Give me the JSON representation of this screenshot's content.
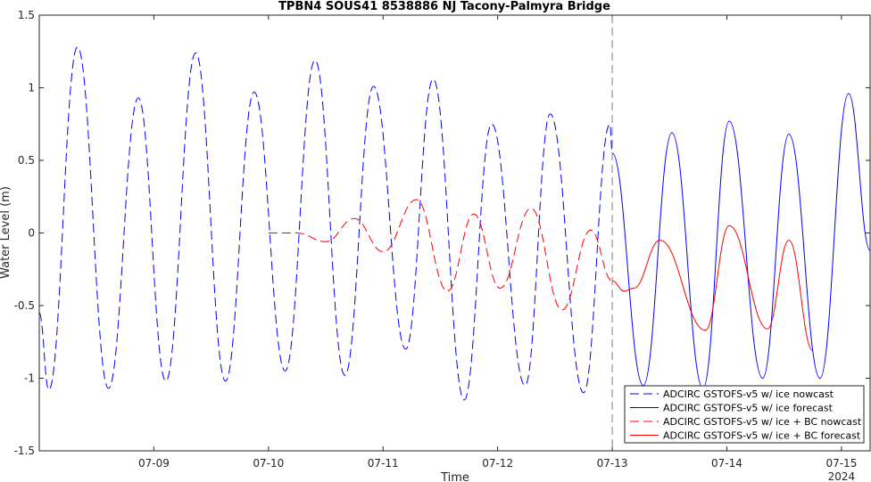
{
  "chart_data": {
    "type": "line",
    "title": "TPBN4 SOUS41 8538886 NJ Tacony-Palmyra Bridge",
    "xlabel": "Time",
    "ylabel": "Water Level (m)",
    "ylim": [
      -1.5,
      1.5
    ],
    "xlim": [
      "2024-07-08 00:00",
      "2024-07-15 06:00"
    ],
    "yticks": [
      1.5,
      1,
      0.5,
      0,
      -0.5,
      -1,
      -1.5
    ],
    "ytick_labels": [
      "1.5",
      "1",
      "0.5",
      "0",
      "-0.5",
      "-1",
      "-1.5"
    ],
    "xticks": [
      "2024-07-09",
      "2024-07-10",
      "2024-07-11",
      "2024-07-12",
      "2024-07-13",
      "2024-07-14",
      "2024-07-15"
    ],
    "xtick_labels": [
      "07-09",
      "07-10",
      "07-11",
      "07-12",
      "07-13",
      "07-14",
      "07-15"
    ],
    "x_year_label": "2024",
    "forecast_start": "2024-07-13 00:00",
    "legend_location": "bottom-right",
    "series": [
      {
        "name": "ADCIRC GSTOFS-v5 w/ ice nowcast",
        "color": "#0000ff",
        "style": "dashed",
        "points": [
          [
            "2024-07-08 00:00",
            -0.55
          ],
          [
            "2024-07-08 02:00",
            -1.08
          ],
          [
            "2024-07-08 08:00",
            1.28
          ],
          [
            "2024-07-08 14:30",
            -1.07
          ],
          [
            "2024-07-08 20:45",
            0.93
          ],
          [
            "2024-07-09 02:30",
            -1.02
          ],
          [
            "2024-07-09 08:45",
            1.24
          ],
          [
            "2024-07-09 15:00",
            -1.02
          ],
          [
            "2024-07-09 21:00",
            0.97
          ],
          [
            "2024-07-10 03:30",
            -0.95
          ],
          [
            "2024-07-10 09:45",
            1.19
          ],
          [
            "2024-07-10 16:00",
            -0.98
          ],
          [
            "2024-07-10 22:00",
            1.01
          ],
          [
            "2024-07-11 04:45",
            -0.8
          ],
          [
            "2024-07-11 10:30",
            1.06
          ],
          [
            "2024-07-11 17:00",
            -1.15
          ],
          [
            "2024-07-11 22:45",
            0.75
          ],
          [
            "2024-07-12 05:45",
            -1.05
          ],
          [
            "2024-07-12 11:00",
            0.82
          ],
          [
            "2024-07-12 18:00",
            -1.1
          ],
          [
            "2024-07-12 23:30",
            0.75
          ],
          [
            "2024-07-13 00:00",
            0.55
          ]
        ]
      },
      {
        "name": "ADCIRC GSTOFS-v5 w/ ice forecast",
        "color": "#0000ff",
        "style": "solid",
        "points": [
          [
            "2024-07-13 00:00",
            0.55
          ],
          [
            "2024-07-13 06:30",
            -1.05
          ],
          [
            "2024-07-13 12:30",
            0.69
          ],
          [
            "2024-07-13 19:00",
            -1.07
          ],
          [
            "2024-07-14 00:30",
            0.77
          ],
          [
            "2024-07-14 07:30",
            -1.0
          ],
          [
            "2024-07-14 13:00",
            0.68
          ],
          [
            "2024-07-14 19:30",
            -1.0
          ],
          [
            "2024-07-15 01:30",
            0.96
          ],
          [
            "2024-07-15 06:00",
            -0.12
          ]
        ]
      },
      {
        "name": "ADCIRC GSTOFS-v5 w/ ice + BC nowcast",
        "color": "#ff0000",
        "style": "dashed",
        "points": [
          [
            "2024-07-10 00:00",
            0.0
          ],
          [
            "2024-07-10 06:00",
            0.0
          ],
          [
            "2024-07-10 12:00",
            -0.06
          ],
          [
            "2024-07-10 18:00",
            0.1
          ],
          [
            "2024-07-11 00:00",
            -0.13
          ],
          [
            "2024-07-11 07:00",
            0.23
          ],
          [
            "2024-07-11 13:30",
            -0.4
          ],
          [
            "2024-07-11 19:00",
            0.13
          ],
          [
            "2024-07-12 00:30",
            -0.38
          ],
          [
            "2024-07-12 07:00",
            0.17
          ],
          [
            "2024-07-12 13:30",
            -0.53
          ],
          [
            "2024-07-12 19:30",
            0.02
          ],
          [
            "2024-07-13 00:00",
            -0.33
          ]
        ]
      },
      {
        "name": "ADCIRC GSTOFS-v5 w/ ice + BC forecast",
        "color": "#ff0000",
        "style": "solid",
        "points": [
          [
            "2024-07-13 00:00",
            -0.33
          ],
          [
            "2024-07-13 02:30",
            -0.4
          ],
          [
            "2024-07-13 04:30",
            -0.38
          ],
          [
            "2024-07-13 10:00",
            -0.05
          ],
          [
            "2024-07-13 19:30",
            -0.67
          ],
          [
            "2024-07-14 00:30",
            0.05
          ],
          [
            "2024-07-14 08:30",
            -0.66
          ],
          [
            "2024-07-14 13:00",
            -0.05
          ],
          [
            "2024-07-14 18:00",
            -0.81
          ]
        ]
      }
    ]
  }
}
